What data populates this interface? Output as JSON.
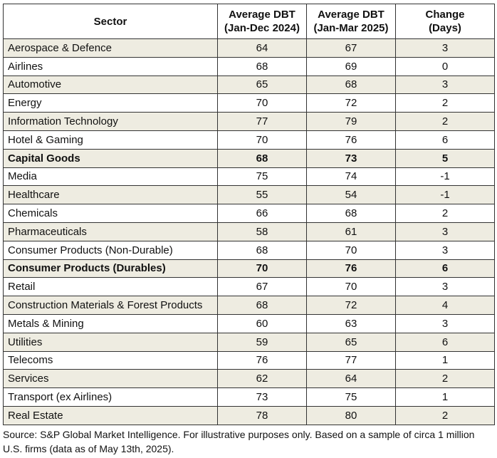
{
  "table": {
    "header": [
      [
        "Sector"
      ],
      [
        "Average DBT",
        "(Jan-Dec 2024)"
      ],
      [
        "Average DBT",
        "(Jan-Mar 2025)"
      ],
      [
        "Change",
        "(Days)"
      ]
    ],
    "rows": [
      {
        "sector": "Aerospace & Defence",
        "values": [
          64,
          67,
          3
        ]
      },
      {
        "sector": "Airlines",
        "values": [
          68,
          69,
          0
        ]
      },
      {
        "sector": "Automotive",
        "values": [
          65,
          68,
          3
        ]
      },
      {
        "sector": "Energy",
        "values": [
          70,
          72,
          2
        ]
      },
      {
        "sector": "Information Technology",
        "values": [
          77,
          79,
          2
        ]
      },
      {
        "sector": "Hotel & Gaming",
        "values": [
          70,
          76,
          6
        ]
      },
      {
        "sector": "Capital Goods",
        "values": [
          68,
          73,
          5
        ],
        "bold": true
      },
      {
        "sector": "Media",
        "values": [
          75,
          74,
          -1
        ]
      },
      {
        "sector": "Healthcare",
        "values": [
          55,
          54,
          -1
        ]
      },
      {
        "sector": "Chemicals",
        "values": [
          66,
          68,
          2
        ]
      },
      {
        "sector": "Pharmaceuticals",
        "values": [
          58,
          61,
          3
        ]
      },
      {
        "sector": "Consumer Products (Non-Durable)",
        "values": [
          68,
          70,
          3
        ]
      },
      {
        "sector": "Consumer Products (Durables)",
        "values": [
          70,
          76,
          6
        ],
        "bold": true
      },
      {
        "sector": "Retail",
        "values": [
          67,
          70,
          3
        ]
      },
      {
        "sector": "Construction Materials & Forest Products",
        "values": [
          68,
          72,
          4
        ]
      },
      {
        "sector": "Metals & Mining",
        "values": [
          60,
          63,
          3
        ]
      },
      {
        "sector": "Utilities",
        "values": [
          59,
          65,
          6
        ]
      },
      {
        "sector": "Telecoms",
        "values": [
          76,
          77,
          1
        ]
      },
      {
        "sector": "Services",
        "values": [
          62,
          64,
          2
        ]
      },
      {
        "sector": "Transport (ex Airlines)",
        "values": [
          73,
          75,
          1
        ]
      },
      {
        "sector": "Real Estate",
        "values": [
          78,
          80,
          2
        ]
      }
    ]
  },
  "source": "Source: S&P Global Market Intelligence. For illustrative purposes only. Based on a sample of circa 1 million U.S. firms (data as of May 13th, 2025)."
}
